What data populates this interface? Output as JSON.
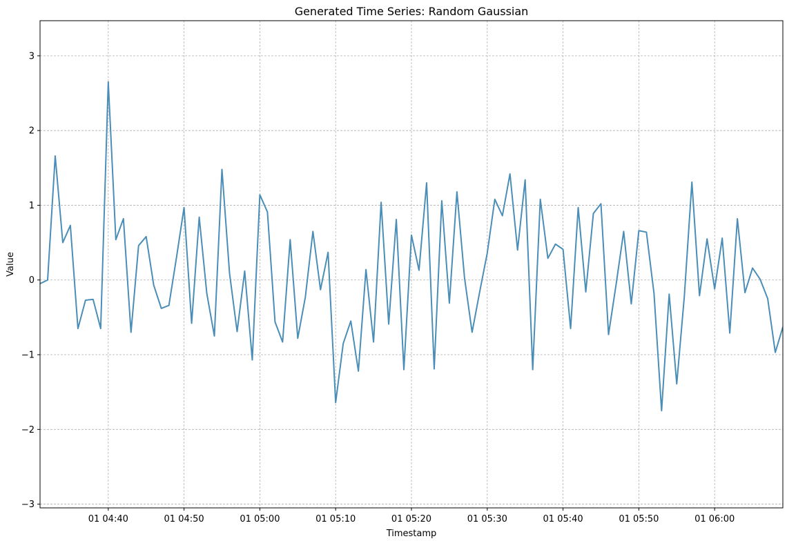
{
  "chart_data": {
    "type": "line",
    "title": "Generated Time Series: Random Gaussian",
    "xlabel": "Timestamp",
    "ylabel": "Value",
    "xlim": [
      "01 04:31",
      "01 06:09"
    ],
    "ylim": [
      -3.05,
      3.47
    ],
    "grid": true,
    "x_ticks": [
      "01 04:40",
      "01 04:50",
      "01 05:00",
      "01 05:10",
      "01 05:20",
      "01 05:30",
      "01 05:40",
      "01 05:50",
      "01 06:00"
    ],
    "y_ticks": [
      "−3",
      "−2",
      "−1",
      "0",
      "1",
      "2",
      "3"
    ],
    "series": [
      {
        "color": "#4a8db7",
        "x_start": "01 04:31",
        "x_step_minutes": 1,
        "values": [
          -0.05,
          0.0,
          1.66,
          0.5,
          0.73,
          -0.65,
          -0.27,
          -0.26,
          -0.65,
          2.65,
          0.54,
          0.82,
          -0.7,
          0.46,
          0.58,
          -0.07,
          -0.38,
          -0.34,
          0.3,
          0.97,
          -0.58,
          0.84,
          -0.18,
          -0.75,
          1.48,
          0.09,
          -0.69,
          0.12,
          -1.07,
          1.14,
          0.91,
          -0.56,
          -0.83,
          0.54,
          -0.78,
          -0.23,
          0.65,
          -0.13,
          0.37,
          -1.64,
          -0.85,
          -0.55,
          -1.22,
          0.14,
          -0.83,
          1.04,
          -0.59,
          0.81,
          -1.2,
          0.6,
          0.13,
          1.3,
          -1.19,
          1.06,
          -0.31,
          1.18,
          0.03,
          -0.7,
          -0.16,
          0.36,
          1.08,
          0.86,
          1.42,
          0.4,
          1.34,
          -1.2,
          1.08,
          0.29,
          0.48,
          0.41,
          -0.65,
          0.97,
          -0.16,
          0.89,
          1.02,
          -0.73,
          -0.06,
          0.65,
          -0.32,
          0.66,
          0.64,
          -0.18,
          -1.75,
          -0.19,
          -1.39,
          -0.22,
          1.31,
          -0.21,
          0.55,
          -0.12,
          0.56,
          -0.71,
          0.82,
          -0.17,
          0.16,
          0.01,
          -0.25,
          -0.97,
          -0.63
        ]
      }
    ]
  }
}
